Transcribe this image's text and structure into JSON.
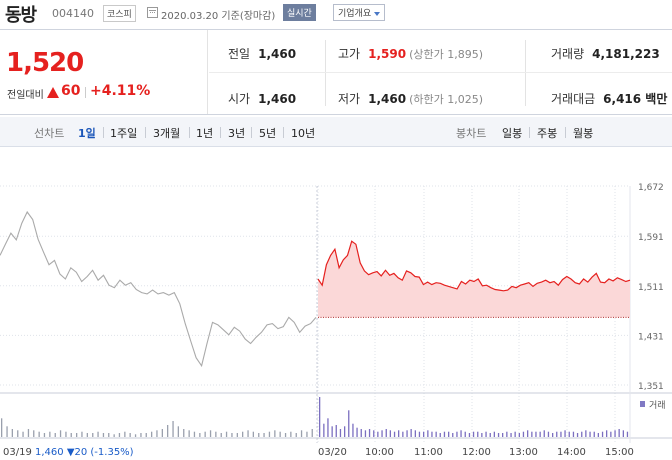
{
  "header": {
    "stock_name": "동방",
    "stock_code": "004140",
    "market": "코스피",
    "date_text": "2020.03.20 기준(장마감)",
    "realtime_label": "실시간",
    "company_button": "기업개요",
    "calendar_icon": "calendar-icon"
  },
  "summary": {
    "current_price": "1,520",
    "change_label": "전일대비",
    "change_amount": "60",
    "change_rate": "+4.11%",
    "change_direction": "up",
    "prev_label": "전일",
    "prev_value": "1,460",
    "high_label": "고가",
    "high_value": "1,590",
    "upper_limit": "(상한가 1,895)",
    "volume_label": "거래량",
    "volume_value": "4,181,223",
    "open_label": "시가",
    "open_value": "1,460",
    "low_label": "저가",
    "low_value": "1,460",
    "lower_limit": "(하한가 1,025)",
    "amount_label": "거래대금",
    "amount_value": "6,416 백만"
  },
  "period_bar": {
    "line_label": "선차트",
    "line_periods": [
      "1일",
      "1주일",
      "3개월",
      "1년",
      "3년",
      "5년",
      "10년"
    ],
    "active_period": "1일",
    "candle_label": "봉차트",
    "candle_periods": [
      "일봉",
      "주봉",
      "월봉"
    ]
  },
  "colors": {
    "up": "#e5211f",
    "prev_day_line": "#aaaaaa",
    "area_fill": "#fbd8d8",
    "volume_prev": "#9aa0ad",
    "volume_today": "#7b6fc0"
  },
  "chart_data": {
    "type": "line",
    "y_ticks": [
      "1,672",
      "1,591",
      "1,511",
      "1,431",
      "1,351"
    ],
    "y_tick_values": [
      1672,
      1591,
      1511,
      1431,
      1351
    ],
    "ylim": [
      1351,
      1672
    ],
    "x_ticks": [
      "03/20",
      "10:00",
      "11:00",
      "12:00",
      "13:00",
      "14:00",
      "15:00"
    ],
    "volume_label": "거래",
    "baseline_value": 1460,
    "grid": true,
    "prev_day": {
      "date": "03/19",
      "close": "1,460",
      "change": "▼20",
      "rate": "(-1.35%)",
      "values": [
        1560,
        1578,
        1596,
        1585,
        1612,
        1630,
        1618,
        1586,
        1565,
        1545,
        1552,
        1530,
        1522,
        1540,
        1533,
        1518,
        1526,
        1536,
        1520,
        1528,
        1512,
        1508,
        1520,
        1512,
        1516,
        1505,
        1500,
        1498,
        1504,
        1498,
        1500,
        1496,
        1500,
        1482,
        1450,
        1422,
        1395,
        1382,
        1418,
        1452,
        1448,
        1440,
        1432,
        1444,
        1438,
        1425,
        1418,
        1428,
        1436,
        1448,
        1450,
        1442,
        1445,
        1460,
        1452,
        1436,
        1446,
        1450,
        1460
      ]
    },
    "today": {
      "values": [
        1522,
        1512,
        1545,
        1560,
        1570,
        1540,
        1553,
        1560,
        1583,
        1578,
        1548,
        1535,
        1529,
        1532,
        1534,
        1527,
        1536,
        1528,
        1531,
        1524,
        1520,
        1535,
        1532,
        1526,
        1525,
        1513,
        1517,
        1513,
        1516,
        1515,
        1512,
        1510,
        1508,
        1506,
        1518,
        1514,
        1520,
        1518,
        1522,
        1511,
        1512,
        1508,
        1505,
        1504,
        1503,
        1504,
        1510,
        1508,
        1512,
        1514,
        1516,
        1510,
        1515,
        1517,
        1520,
        1516,
        1518,
        1512,
        1521,
        1526,
        1522,
        1516,
        1514,
        1522,
        1517,
        1525,
        1531,
        1517,
        1516,
        1522,
        1519,
        1524,
        1521,
        1518,
        1520
      ]
    },
    "volumes_prev": [
      14,
      8,
      6,
      5,
      4,
      6,
      5,
      4,
      3,
      4,
      3,
      5,
      4,
      3,
      3,
      4,
      3,
      3,
      4,
      3,
      3,
      2,
      3,
      4,
      3,
      2,
      3,
      3,
      4,
      5,
      6,
      9,
      12,
      8,
      6,
      5,
      4,
      3,
      4,
      5,
      4,
      3,
      4,
      3,
      3,
      4,
      5,
      4,
      3,
      3,
      4,
      5,
      4,
      3,
      4,
      3,
      5,
      4,
      6
    ],
    "volumes_today": [
      30,
      10,
      14,
      8,
      9,
      6,
      8,
      20,
      10,
      7,
      6,
      5,
      6,
      5,
      4,
      5,
      6,
      5,
      4,
      5,
      4,
      5,
      6,
      5,
      4,
      4,
      5,
      4,
      4,
      3,
      4,
      4,
      3,
      4,
      5,
      4,
      3,
      4,
      4,
      3,
      4,
      3,
      4,
      3,
      3,
      4,
      3,
      4,
      3,
      4,
      5,
      4,
      4,
      4,
      5,
      4,
      3,
      4,
      4,
      5,
      4,
      4,
      3,
      4,
      5,
      4,
      4,
      3,
      4,
      5,
      4,
      5,
      6,
      5,
      4
    ]
  }
}
